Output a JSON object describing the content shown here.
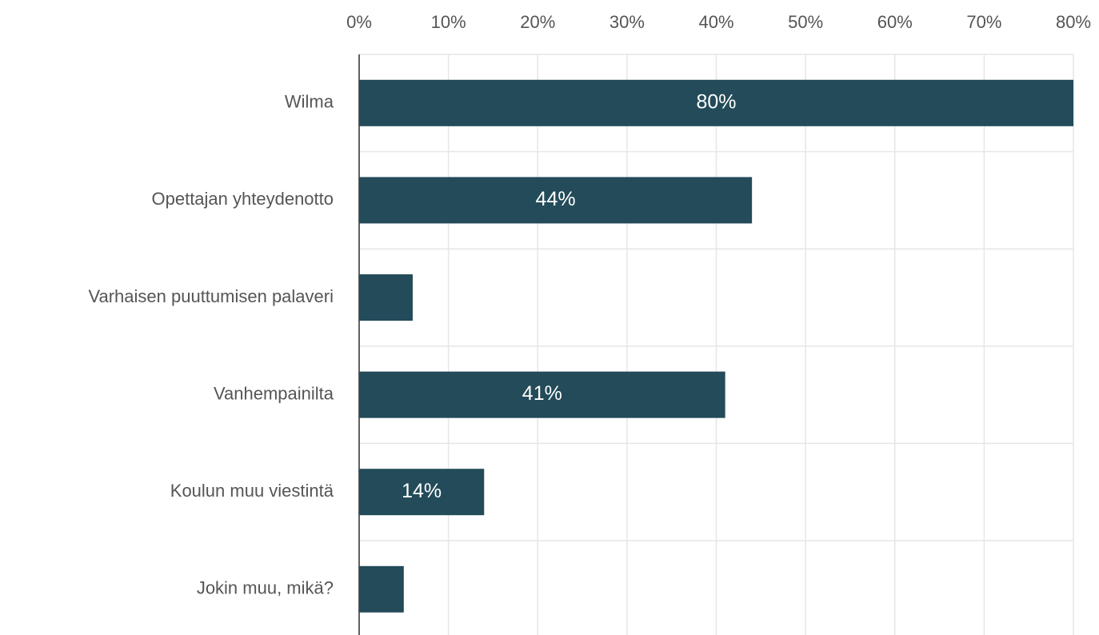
{
  "chart_data": {
    "type": "bar",
    "orientation": "horizontal",
    "categories": [
      "Wilma",
      "Opettajan yhteydenotto",
      "Varhaisen puuttumisen palaveri",
      "Vanhempainilta",
      "Koulun muu viestintä",
      "Jokin muu, mikä?"
    ],
    "values": [
      80,
      44,
      6,
      41,
      14,
      5
    ],
    "value_labels": [
      "80%",
      "44%",
      null,
      "41%",
      "14%",
      null
    ],
    "color": "#234b59",
    "xlim": [
      0,
      80
    ],
    "xticks": [
      {
        "value": 0,
        "label": "0%"
      },
      {
        "value": 10,
        "label": "10%"
      },
      {
        "value": 20,
        "label": "20%"
      },
      {
        "value": 30,
        "label": "30%"
      },
      {
        "value": 40,
        "label": "40%"
      },
      {
        "value": 50,
        "label": "50%"
      },
      {
        "value": 60,
        "label": "60%"
      },
      {
        "value": 70,
        "label": "70%"
      },
      {
        "value": 80,
        "label": "80%"
      }
    ],
    "grid": true
  }
}
